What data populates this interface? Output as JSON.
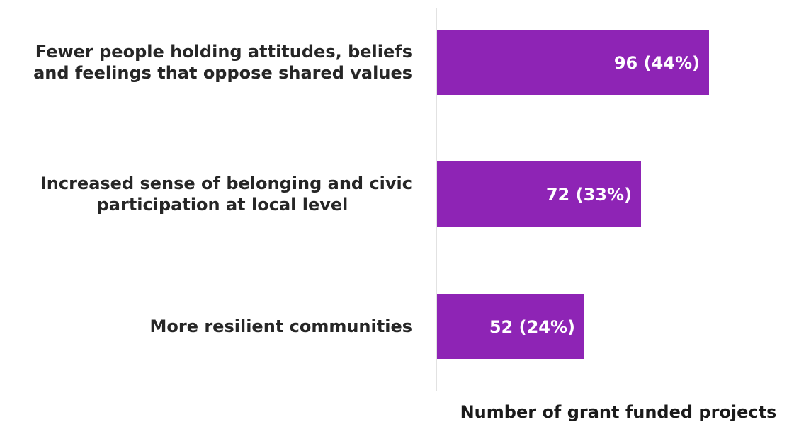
{
  "chart_data": {
    "type": "bar",
    "orientation": "horizontal",
    "categories": [
      "Fewer people holding attitudes, beliefs and feelings that oppose shared values",
      "Increased sense of belonging and civic participation at local level",
      "More resilient communities"
    ],
    "category_label_lines": [
      [
        "Fewer people holding attitudes, beliefs",
        "and feelings that oppose shared values"
      ],
      [
        "Increased sense of belonging and civic",
        "participation at local level"
      ],
      [
        "More resilient communities"
      ]
    ],
    "values": [
      96,
      72,
      52
    ],
    "data_labels": [
      "96 (44%)",
      "72 (33%)",
      "52 (24%)"
    ],
    "percentages": [
      44,
      33,
      24
    ],
    "xlabel": "Number of grant funded projects",
    "ylabel": "",
    "title": "",
    "xlim": [
      0,
      123
    ],
    "grid": false,
    "legend": "none",
    "bar_color": "#8e24b5",
    "axis_line_color": "#d9d9d9"
  }
}
